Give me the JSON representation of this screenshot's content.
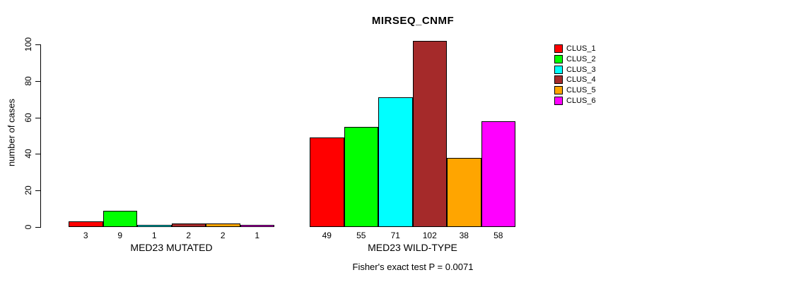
{
  "chart_data": {
    "type": "bar",
    "title": "MIRSEQ_CNMF",
    "ylabel": "number of cases",
    "xlabel": "",
    "ylim": [
      0,
      100
    ],
    "yticks": [
      0,
      20,
      40,
      60,
      80,
      100
    ],
    "grid": false,
    "legend_position": "right",
    "annotation": "Fisher's exact test P = 0.0071",
    "categories": [
      "MED23 MUTATED",
      "MED23 WILD-TYPE"
    ],
    "series": [
      {
        "name": "CLUS_1",
        "color": "#FF0000",
        "values": [
          3,
          49
        ]
      },
      {
        "name": "CLUS_2",
        "color": "#00FF00",
        "values": [
          9,
          55
        ]
      },
      {
        "name": "CLUS_3",
        "color": "#00FFFF",
        "values": [
          1,
          71
        ]
      },
      {
        "name": "CLUS_4",
        "color": "#A52A2A",
        "values": [
          2,
          102
        ]
      },
      {
        "name": "CLUS_5",
        "color": "#FFA500",
        "values": [
          2,
          38
        ]
      },
      {
        "name": "CLUS_6",
        "color": "#FF00FF",
        "values": [
          1,
          58
        ]
      }
    ],
    "bar_value_labels": true
  }
}
